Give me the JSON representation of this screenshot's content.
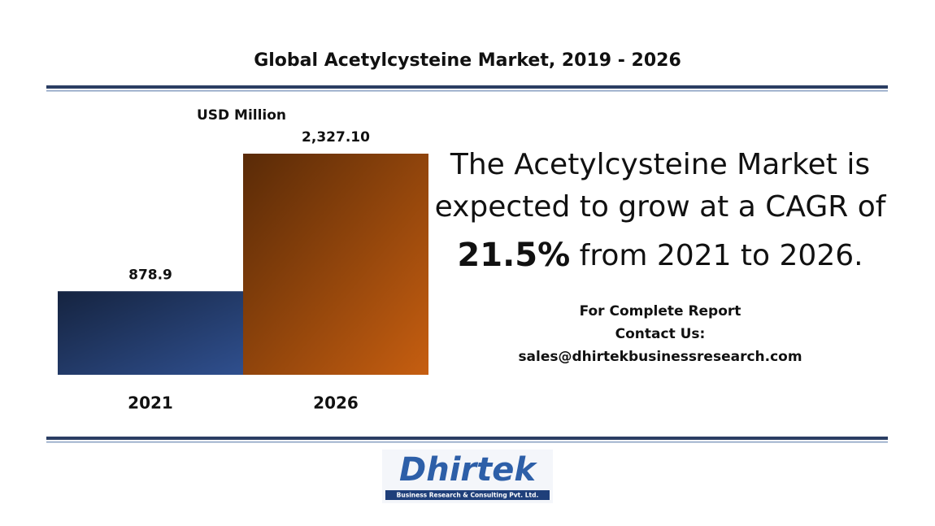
{
  "chart_data": {
    "type": "bar",
    "title": "Global Acetylcysteine Market, 2019 - 2026",
    "y_label": "USD Million",
    "categories": [
      "2021",
      "2026"
    ],
    "values": [
      878.9,
      2327.1
    ],
    "value_labels": [
      "878.9",
      "2,327.10"
    ],
    "colors": [
      "#2f4f8e",
      "#c65e10"
    ],
    "headline": [
      "The Acetylcysteine Market is",
      "expected to grow at a CAGR of",
      "21.5%",
      "from 2021 to 2026."
    ],
    "contact": [
      "For Complete Report",
      "Contact Us:",
      "sales@dhirtekbusinessresearch.com"
    ],
    "logo": {
      "name": "Dhirtek",
      "tagline": "Business Research & Consulting Pvt. Ltd."
    }
  }
}
